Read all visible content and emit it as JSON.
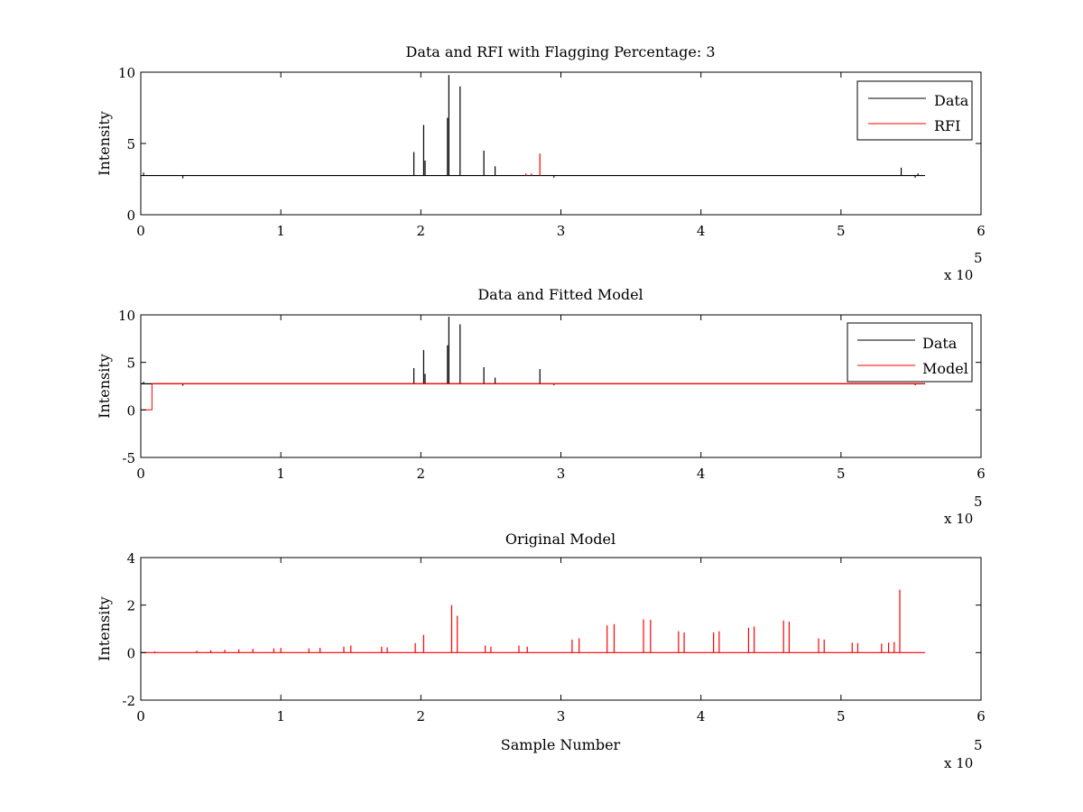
{
  "chart_data": [
    {
      "type": "line",
      "title": "Data and RFI with Flagging Percentage: 3",
      "xlabel": "",
      "ylabel": "Intensity",
      "xlim": [
        0,
        6
      ],
      "ylim": [
        0,
        10
      ],
      "xticks": [
        "0",
        "1",
        "2",
        "3",
        "4",
        "5",
        "6"
      ],
      "yticks": [
        "0",
        "5",
        "10"
      ],
      "x_exponent": "x 10",
      "x_exponent_power": "5",
      "grid": false,
      "legend": {
        "position": "top-right",
        "entries": [
          "Data",
          "RFI"
        ]
      },
      "series": [
        {
          "name": "Data",
          "color": "#000000",
          "baseline": 2.75,
          "spikes": [
            [
              1.95,
              4.4
            ],
            [
              2.02,
              6.3
            ],
            [
              2.03,
              3.8
            ],
            [
              2.19,
              6.8
            ],
            [
              2.2,
              9.8
            ],
            [
              2.28,
              9.0
            ],
            [
              2.45,
              4.5
            ],
            [
              2.53,
              3.4
            ],
            [
              0.3,
              2.55
            ],
            [
              2.95,
              2.6
            ],
            [
              5.53,
              2.6
            ],
            [
              5.55,
              2.9
            ],
            [
              0.02,
              2.95
            ],
            [
              5.43,
              3.3
            ]
          ]
        },
        {
          "name": "RFI",
          "color": "#ff0000",
          "spikes": [
            [
              2.75,
              2.9
            ],
            [
              2.79,
              2.9
            ],
            [
              2.85,
              4.3
            ]
          ]
        }
      ]
    },
    {
      "type": "line",
      "title": "Data and Fitted Model",
      "xlabel": "",
      "ylabel": "Intensity",
      "xlim": [
        0,
        6
      ],
      "ylim": [
        -5,
        10
      ],
      "xticks": [
        "0",
        "1",
        "2",
        "3",
        "4",
        "5",
        "6"
      ],
      "yticks": [
        "-5",
        "0",
        "5",
        "10"
      ],
      "x_exponent": "x 10",
      "x_exponent_power": "5",
      "grid": false,
      "legend": {
        "position": "top-right",
        "entries": [
          "Data",
          "Model"
        ]
      },
      "series": [
        {
          "name": "Data",
          "color": "#000000",
          "baseline": 2.75,
          "spikes": [
            [
              1.95,
              4.4
            ],
            [
              2.02,
              6.3
            ],
            [
              2.03,
              3.8
            ],
            [
              2.19,
              6.8
            ],
            [
              2.2,
              9.8
            ],
            [
              2.28,
              9.0
            ],
            [
              2.45,
              4.5
            ],
            [
              2.53,
              3.4
            ],
            [
              2.85,
              4.3
            ],
            [
              0.3,
              2.55
            ],
            [
              2.95,
              2.6
            ],
            [
              5.53,
              2.6
            ],
            [
              0.02,
              2.95
            ]
          ]
        },
        {
          "name": "Model",
          "color": "#ff0000",
          "baseline": 2.75,
          "step": [
            [
              0,
              0
            ],
            [
              0.08,
              0
            ],
            [
              0.08,
              2.75
            ]
          ]
        }
      ]
    },
    {
      "type": "line",
      "title": "Original Model",
      "xlabel": "Sample Number",
      "ylabel": "Intensity",
      "xlim": [
        0,
        6
      ],
      "ylim": [
        -2,
        4
      ],
      "xticks": [
        "0",
        "1",
        "2",
        "3",
        "4",
        "5",
        "6"
      ],
      "yticks": [
        "-2",
        "0",
        "2",
        "4"
      ],
      "x_exponent": "x 10",
      "x_exponent_power": "5",
      "grid": false,
      "series": [
        {
          "color": "#ff0000",
          "baseline": 0,
          "x_end": 5.6,
          "spikes": [
            [
              0.1,
              0.05
            ],
            [
              0.4,
              0.08
            ],
            [
              0.5,
              0.1
            ],
            [
              0.6,
              0.12
            ],
            [
              0.7,
              0.14
            ],
            [
              0.8,
              0.16
            ],
            [
              0.95,
              0.18
            ],
            [
              1.0,
              0.2
            ],
            [
              1.2,
              0.18
            ],
            [
              1.28,
              0.2
            ],
            [
              1.45,
              0.25
            ],
            [
              1.5,
              0.3
            ],
            [
              1.72,
              0.25
            ],
            [
              1.76,
              0.22
            ],
            [
              1.96,
              0.4
            ],
            [
              2.02,
              0.75
            ],
            [
              2.22,
              2.0
            ],
            [
              2.26,
              1.55
            ],
            [
              2.46,
              0.3
            ],
            [
              2.5,
              0.25
            ],
            [
              2.7,
              0.3
            ],
            [
              2.76,
              0.25
            ],
            [
              3.08,
              0.55
            ],
            [
              3.13,
              0.6
            ],
            [
              3.33,
              1.15
            ],
            [
              3.38,
              1.2
            ],
            [
              3.59,
              1.4
            ],
            [
              3.64,
              1.38
            ],
            [
              3.84,
              0.9
            ],
            [
              3.88,
              0.85
            ],
            [
              4.09,
              0.85
            ],
            [
              4.13,
              0.9
            ],
            [
              4.34,
              1.05
            ],
            [
              4.38,
              1.1
            ],
            [
              4.59,
              1.35
            ],
            [
              4.63,
              1.3
            ],
            [
              4.84,
              0.6
            ],
            [
              4.88,
              0.55
            ],
            [
              5.08,
              0.42
            ],
            [
              5.12,
              0.4
            ],
            [
              5.29,
              0.38
            ],
            [
              5.34,
              0.42
            ],
            [
              5.38,
              0.45
            ],
            [
              5.42,
              2.65
            ]
          ]
        }
      ]
    }
  ]
}
